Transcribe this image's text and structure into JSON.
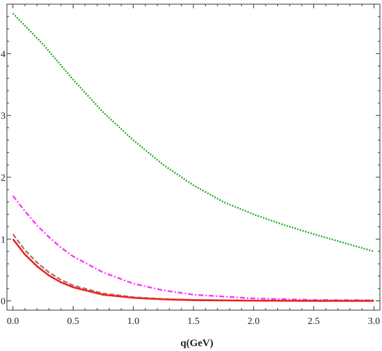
{
  "chart_data": {
    "type": "line",
    "title": "",
    "xlabel": "q(GeV)",
    "ylabel": "",
    "xlim": [
      -0.05,
      3.05
    ],
    "ylim": [
      -0.15,
      4.8
    ],
    "xticks": [
      0.0,
      0.5,
      1.0,
      1.5,
      2.0,
      2.5,
      3.0
    ],
    "xtick_labels": [
      "0.0",
      "0.5",
      "1.0",
      "1.5",
      "2.0",
      "2.5",
      "3.0"
    ],
    "yticks": [
      0,
      1,
      2,
      3,
      4
    ],
    "ytick_labels": [
      "0",
      "1",
      "2",
      "3",
      "4"
    ],
    "grid": false,
    "legend": "none",
    "series": [
      {
        "color": "#22aa22",
        "style": "dotted",
        "x": [
          0.0,
          0.25,
          0.5,
          0.75,
          1.0,
          1.25,
          1.5,
          1.75,
          2.0,
          2.25,
          2.5,
          2.75,
          3.0
        ],
        "y": [
          4.65,
          4.15,
          3.58,
          3.05,
          2.6,
          2.2,
          1.87,
          1.6,
          1.4,
          1.23,
          1.08,
          0.94,
          0.8
        ]
      },
      {
        "color": "#ff33ff",
        "style": "dash-dot",
        "x": [
          0.0,
          0.1,
          0.2,
          0.3,
          0.4,
          0.5,
          0.75,
          1.0,
          1.25,
          1.5,
          2.0,
          2.5,
          3.0
        ],
        "y": [
          1.7,
          1.45,
          1.22,
          1.03,
          0.86,
          0.72,
          0.46,
          0.28,
          0.17,
          0.1,
          0.04,
          0.015,
          0.01
        ]
      },
      {
        "color": "#aa7766",
        "style": "dashed",
        "x": [
          0.0,
          0.1,
          0.2,
          0.3,
          0.4,
          0.5,
          0.75,
          1.0,
          1.25,
          1.5,
          2.0,
          2.5,
          3.0
        ],
        "y": [
          1.08,
          0.82,
          0.62,
          0.46,
          0.34,
          0.25,
          0.12,
          0.06,
          0.03,
          0.015,
          0.005,
          0.002,
          0.0
        ]
      },
      {
        "color": "#ee2222",
        "style": "solid",
        "x": [
          0.0,
          0.1,
          0.2,
          0.3,
          0.4,
          0.5,
          0.75,
          1.0,
          1.25,
          1.5,
          2.0,
          2.5,
          3.0
        ],
        "y": [
          1.0,
          0.75,
          0.56,
          0.41,
          0.3,
          0.22,
          0.1,
          0.05,
          0.025,
          0.012,
          0.004,
          0.001,
          0.0
        ]
      }
    ]
  }
}
